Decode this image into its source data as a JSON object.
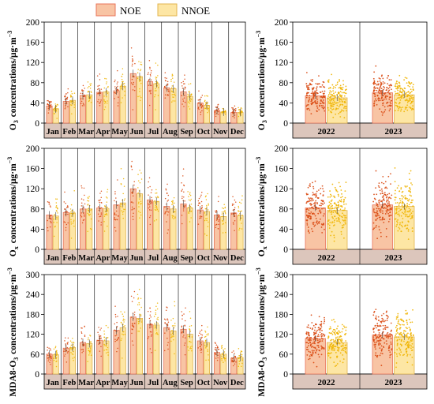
{
  "legend": {
    "items": [
      {
        "label": "NOE",
        "color": "#f8c4a4",
        "edge": "#e8745a"
      },
      {
        "label": "NNOE",
        "color": "#fde6a4",
        "edge": "#e2b44e"
      }
    ],
    "placement": "top"
  },
  "colors": {
    "noe_points": "#d9480f",
    "nnoe_points": "#f0b400",
    "label_band": "#dcc6bc"
  },
  "chart_data": [
    {
      "id": "monthly-o3",
      "type": "bar",
      "categories": [
        "Jan",
        "Feb",
        "Mar",
        "Apr",
        "May",
        "Jun",
        "Jul",
        "Aug",
        "Sep",
        "Oct",
        "Nov",
        "Dec"
      ],
      "series": [
        {
          "name": "NOE",
          "values": [
            34,
            43,
            55,
            61,
            64,
            98,
            82,
            70,
            62,
            40,
            25,
            21
          ]
        },
        {
          "name": "NNOE",
          "values": [
            28,
            45,
            56,
            62,
            73,
            92,
            78,
            68,
            53,
            35,
            22,
            21
          ]
        }
      ],
      "ylabel": "O<sub>3</sub> concentrations/μg·m<sup>−3</sup>",
      "ylim": [
        0,
        200
      ],
      "yticks": [
        0,
        40,
        80,
        120,
        160,
        200
      ]
    },
    {
      "id": "yearly-o3",
      "type": "bar",
      "categories": [
        "2022",
        "2023"
      ],
      "series": [
        {
          "name": "NOE",
          "values": [
            54,
            60
          ]
        },
        {
          "name": "NNOE",
          "values": [
            50,
            56
          ]
        }
      ],
      "ylabel": "O<sub>3</sub> concentrations/μg·m<sup>−3</sup>",
      "ylim": [
        0,
        200
      ],
      "yticks": [
        0,
        40,
        80,
        120,
        160,
        200
      ]
    },
    {
      "id": "monthly-ox",
      "type": "bar",
      "categories": [
        "Jan",
        "Feb",
        "Mar",
        "Apr",
        "May",
        "Jun",
        "Jul",
        "Aug",
        "Sep",
        "Oct",
        "Nov",
        "Dec"
      ],
      "series": [
        {
          "name": "NOE",
          "values": [
            68,
            73,
            80,
            82,
            88,
            120,
            98,
            85,
            90,
            78,
            68,
            72
          ]
        },
        {
          "name": "NNOE",
          "values": [
            66,
            72,
            80,
            81,
            92,
            110,
            95,
            80,
            82,
            75,
            65,
            67
          ]
        }
      ],
      "ylabel": "O<sub>x</sub> concentrations/μg·m<sup>−3</sup>",
      "ylim": [
        0,
        200
      ],
      "yticks": [
        0,
        40,
        80,
        120,
        160,
        200
      ]
    },
    {
      "id": "yearly-ox",
      "type": "bar",
      "categories": [
        "2022",
        "2023"
      ],
      "series": [
        {
          "name": "NOE",
          "values": [
            82,
            88
          ]
        },
        {
          "name": "NNOE",
          "values": [
            77,
            85
          ]
        }
      ],
      "ylabel": "O<sub>x</sub> concentrations/μg·m<sup>−3</sup>",
      "ylim": [
        0,
        200
      ],
      "yticks": [
        0,
        40,
        80,
        120,
        160,
        200
      ]
    },
    {
      "id": "monthly-mda8",
      "type": "bar",
      "categories": [
        "Jan",
        "Feb",
        "Mar",
        "Apr",
        "May",
        "Jun",
        "Jul",
        "Aug",
        "Sep",
        "Oct",
        "Nov",
        "Dec"
      ],
      "series": [
        {
          "name": "NOE",
          "values": [
            60,
            78,
            95,
            102,
            132,
            172,
            150,
            140,
            135,
            100,
            65,
            48
          ]
        },
        {
          "name": "NNOE",
          "values": [
            58,
            80,
            92,
            100,
            140,
            168,
            148,
            130,
            120,
            95,
            60,
            50
          ]
        }
      ],
      "ylabel": "MDA8-O<sub>3</sub> concentrations/μg·m<sup>−3</sup>",
      "ylim": [
        0,
        300
      ],
      "yticks": [
        0,
        60,
        120,
        180,
        240,
        300
      ]
    },
    {
      "id": "yearly-mda8",
      "type": "bar",
      "categories": [
        "2022",
        "2023"
      ],
      "series": [
        {
          "name": "NOE",
          "values": [
            107,
            118
          ]
        },
        {
          "name": "NNOE",
          "values": [
            95,
            112
          ]
        }
      ],
      "ylabel": "MDA8-O<sub>3</sub> concentrations/μg·m<sup>−3</sup>",
      "ylim": [
        0,
        300
      ],
      "yticks": [
        0,
        60,
        120,
        180,
        240,
        300
      ]
    }
  ]
}
